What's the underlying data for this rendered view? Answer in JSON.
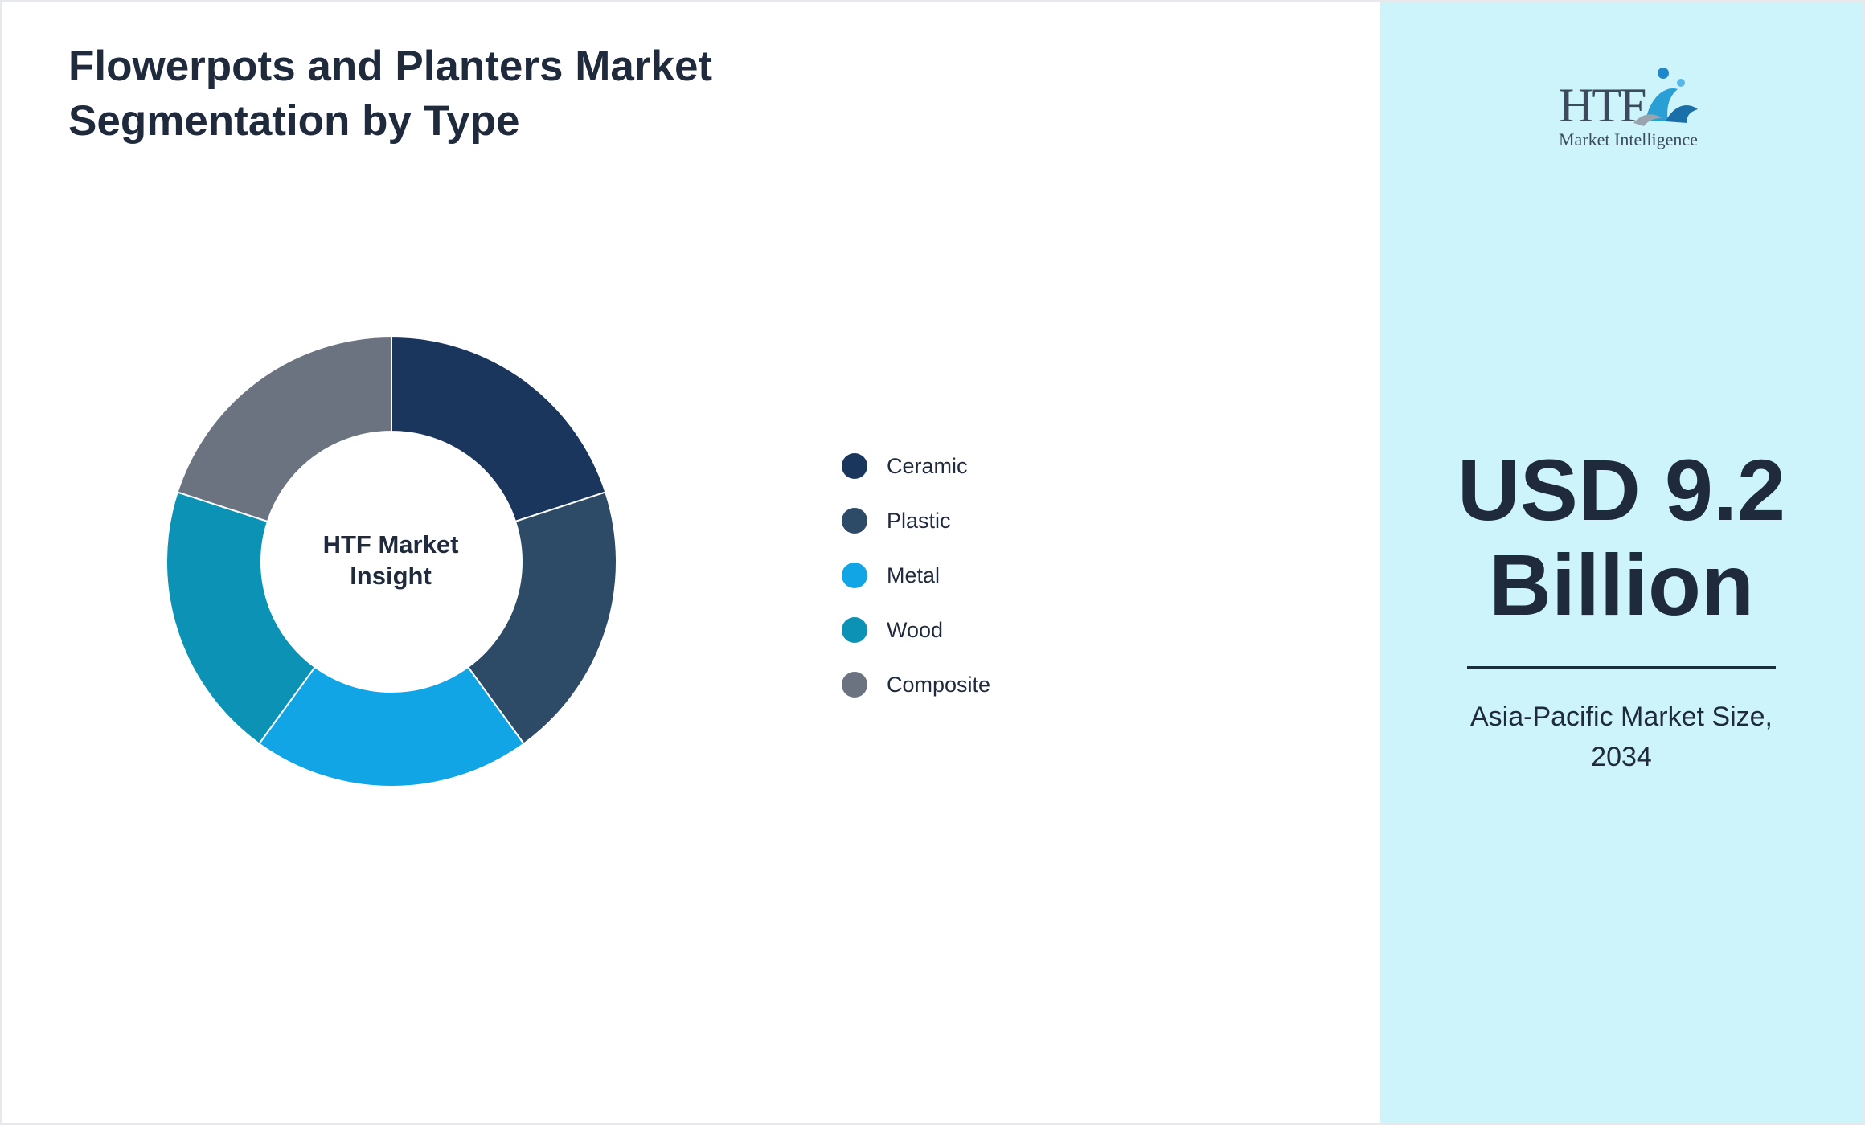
{
  "title_lines": [
    "Flowerpots and Planters Market",
    "Segmentation by Type"
  ],
  "chart_data": {
    "type": "pie",
    "variant": "donut",
    "title": "Flowerpots and Planters Market Segmentation by Type",
    "center_label_lines": [
      "HTF Market",
      "Insight"
    ],
    "categories": [
      "Ceramic",
      "Plastic",
      "Metal",
      "Wood",
      "Composite"
    ],
    "values": [
      20,
      20,
      20,
      20,
      20
    ],
    "colors": [
      "#1b365d",
      "#2d4a66",
      "#11a5e6",
      "#0b92b5",
      "#6b7280"
    ],
    "legend_position": "right"
  },
  "side_panel": {
    "logo": {
      "text": "HTF",
      "tagline": "Market Intelligence",
      "icon": "htf-logo-icon"
    },
    "value_lines": [
      "USD 9.2",
      "Billion"
    ],
    "caption_lines": [
      "Asia-Pacific Market Size,",
      "2034"
    ],
    "background": "#cdf3fb"
  }
}
